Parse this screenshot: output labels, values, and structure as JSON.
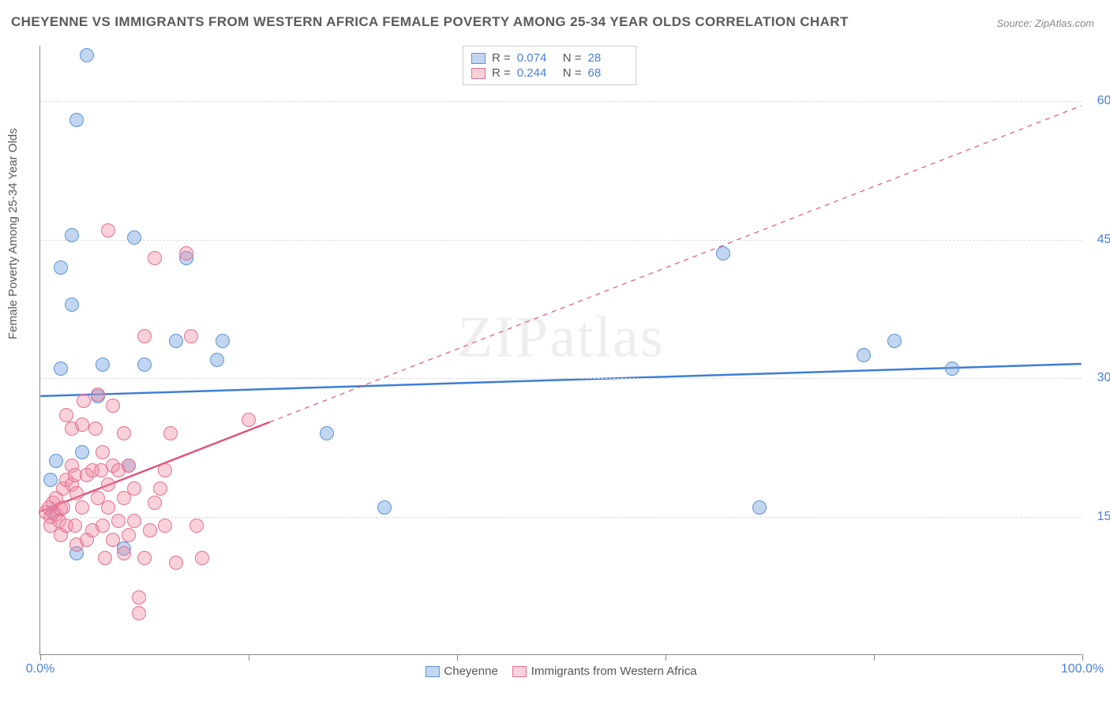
{
  "title": "CHEYENNE VS IMMIGRANTS FROM WESTERN AFRICA FEMALE POVERTY AMONG 25-34 YEAR OLDS CORRELATION CHART",
  "source": "Source: ZipAtlas.com",
  "ylabel": "Female Poverty Among 25-34 Year Olds",
  "watermark": "ZIPatlas",
  "chart": {
    "type": "scatter-correlation",
    "background_color": "#ffffff",
    "grid_color": "#dddddd",
    "axis_color": "#888888",
    "xlim": [
      0,
      100
    ],
    "ylim": [
      0,
      66
    ],
    "xticks": [
      0,
      20,
      40,
      60,
      80,
      100
    ],
    "yticks": [
      15,
      30,
      45,
      60
    ],
    "xtick_labels": {
      "0": "0.0%",
      "100": "100.0%"
    },
    "ytick_labels": {
      "15": "15.0%",
      "30": "30.0%",
      "45": "45.0%",
      "60": "60.0%"
    },
    "marker_radius": 9,
    "marker_opacity": 0.55,
    "series": [
      {
        "name": "Cheyenne",
        "color_stroke": "#5b93d8",
        "color_fill": "rgba(120,165,225,0.45)",
        "R": "0.074",
        "N": "28",
        "trend": {
          "x1": 0,
          "y1": 28.0,
          "x2": 100,
          "y2": 31.5,
          "solid_until_x": 100,
          "color": "#3d7ed6",
          "width": 2.5
        },
        "points": [
          [
            1.5,
            21.0
          ],
          [
            1.0,
            19.0
          ],
          [
            2.0,
            42.0
          ],
          [
            3.0,
            45.5
          ],
          [
            4.5,
            65.0
          ],
          [
            3.5,
            58.0
          ],
          [
            3.0,
            38.0
          ],
          [
            6.0,
            31.5
          ],
          [
            2.0,
            31.0
          ],
          [
            5.5,
            28.0
          ],
          [
            4.0,
            22.0
          ],
          [
            8.5,
            20.5
          ],
          [
            10.0,
            31.5
          ],
          [
            13.0,
            34.0
          ],
          [
            14.0,
            43.0
          ],
          [
            17.5,
            34.0
          ],
          [
            17.0,
            32.0
          ],
          [
            8.0,
            11.5
          ],
          [
            3.5,
            11.0
          ],
          [
            27.5,
            24.0
          ],
          [
            33.0,
            16.0
          ],
          [
            69.0,
            16.0
          ],
          [
            65.5,
            43.5
          ],
          [
            79.0,
            32.5
          ],
          [
            82.0,
            34.0
          ],
          [
            87.5,
            31.0
          ],
          [
            9.0,
            45.2
          ],
          [
            1.2,
            15.5
          ]
        ]
      },
      {
        "name": "Immigrants from Western Africa",
        "color_stroke": "#e56f8f",
        "color_fill": "rgba(240,140,165,0.40)",
        "R": "0.244",
        "N": "68",
        "trend": {
          "x1": 0,
          "y1": 15.5,
          "x2": 100,
          "y2": 59.5,
          "solid_until_x": 22,
          "color": "#e0527c",
          "width": 2.5
        },
        "points": [
          [
            0.5,
            15.5
          ],
          [
            0.8,
            16.0
          ],
          [
            1.0,
            15.0
          ],
          [
            1.0,
            14.0
          ],
          [
            1.2,
            16.5
          ],
          [
            1.5,
            15.2
          ],
          [
            1.5,
            17.0
          ],
          [
            1.8,
            14.5
          ],
          [
            2.0,
            15.8
          ],
          [
            2.0,
            13.0
          ],
          [
            2.2,
            18.0
          ],
          [
            2.2,
            16.0
          ],
          [
            2.5,
            14.0
          ],
          [
            2.5,
            19.0
          ],
          [
            2.5,
            26.0
          ],
          [
            3.0,
            18.5
          ],
          [
            3.0,
            20.5
          ],
          [
            3.0,
            24.5
          ],
          [
            3.3,
            19.5
          ],
          [
            3.5,
            17.5
          ],
          [
            3.3,
            14.0
          ],
          [
            3.5,
            12.0
          ],
          [
            4.0,
            16.0
          ],
          [
            4.0,
            25.0
          ],
          [
            4.2,
            27.5
          ],
          [
            4.5,
            12.5
          ],
          [
            4.5,
            19.5
          ],
          [
            5.0,
            20.0
          ],
          [
            5.0,
            13.5
          ],
          [
            5.3,
            24.5
          ],
          [
            5.5,
            17.0
          ],
          [
            5.5,
            28.2
          ],
          [
            5.8,
            20.0
          ],
          [
            6.0,
            14.0
          ],
          [
            6.0,
            22.0
          ],
          [
            6.2,
            10.5
          ],
          [
            6.5,
            16.0
          ],
          [
            6.5,
            18.5
          ],
          [
            6.5,
            46.0
          ],
          [
            7.0,
            20.5
          ],
          [
            7.0,
            27.0
          ],
          [
            7.0,
            12.5
          ],
          [
            7.5,
            14.5
          ],
          [
            7.5,
            20.0
          ],
          [
            8.0,
            17.0
          ],
          [
            8.0,
            11.0
          ],
          [
            8.0,
            24.0
          ],
          [
            8.5,
            13.0
          ],
          [
            8.5,
            20.5
          ],
          [
            9.0,
            18.0
          ],
          [
            9.0,
            14.5
          ],
          [
            9.5,
            4.5
          ],
          [
            10.0,
            10.5
          ],
          [
            10.0,
            34.5
          ],
          [
            10.5,
            13.5
          ],
          [
            11.0,
            16.5
          ],
          [
            11.0,
            43.0
          ],
          [
            11.5,
            18.0
          ],
          [
            12.0,
            14.0
          ],
          [
            12.0,
            20.0
          ],
          [
            12.5,
            24.0
          ],
          [
            13.0,
            10.0
          ],
          [
            14.0,
            43.5
          ],
          [
            14.5,
            34.5
          ],
          [
            15.0,
            14.0
          ],
          [
            15.5,
            10.5
          ],
          [
            20.0,
            25.5
          ],
          [
            9.5,
            6.2
          ]
        ]
      }
    ]
  },
  "legend_top": {
    "rows": [
      {
        "swatch_fill": "rgba(120,165,225,0.45)",
        "swatch_stroke": "#5b93d8",
        "r_label": "R =",
        "r_val": "0.074",
        "n_label": "N =",
        "n_val": "28"
      },
      {
        "swatch_fill": "rgba(240,140,165,0.40)",
        "swatch_stroke": "#e56f8f",
        "r_label": "R =",
        "r_val": "0.244",
        "n_label": "N =",
        "n_val": "68"
      }
    ]
  },
  "legend_bottom": {
    "items": [
      {
        "swatch_fill": "rgba(120,165,225,0.45)",
        "swatch_stroke": "#5b93d8",
        "label": "Cheyenne"
      },
      {
        "swatch_fill": "rgba(240,140,165,0.40)",
        "swatch_stroke": "#e56f8f",
        "label": "Immigrants from Western Africa"
      }
    ]
  }
}
